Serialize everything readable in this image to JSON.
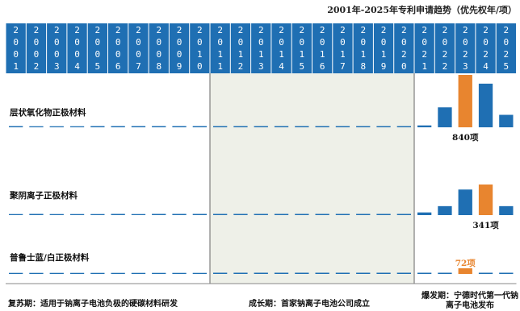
{
  "chart_data": {
    "type": "bar",
    "title": "2001年-2025年专利申请趋势（优先权年/项）",
    "years": [
      "2001",
      "2002",
      "2003",
      "2004",
      "2005",
      "2006",
      "2007",
      "2008",
      "2009",
      "2010",
      "2011",
      "2012",
      "2013",
      "2014",
      "2015",
      "2016",
      "2017",
      "2018",
      "2019",
      "2020",
      "2021",
      "2022",
      "2023",
      "2024",
      "2025"
    ],
    "series": [
      {
        "name": "层状氧化物正极材料",
        "color": "#1f6fb3",
        "values": [
          1,
          0,
          0,
          0,
          1,
          1,
          1,
          1,
          1,
          1,
          2,
          2,
          3,
          4,
          5,
          5,
          8,
          10,
          12,
          15,
          30,
          320,
          840,
          700,
          200
        ],
        "highlight_index": 22,
        "callout": "840项"
      },
      {
        "name": "聚阴离子正极材料",
        "color": "#1f6fb3",
        "values": [
          0,
          1,
          0,
          0,
          0,
          1,
          0,
          1,
          1,
          1,
          2,
          2,
          3,
          4,
          7,
          9,
          11,
          12,
          11,
          8,
          30,
          100,
          285,
          341,
          100
        ],
        "highlight_index": 23,
        "callout": "341项"
      },
      {
        "name": "普鲁士蓝/白正极材料",
        "color": "#1f6fb3",
        "values": [
          0,
          0,
          0,
          0,
          0,
          0,
          0,
          0,
          0,
          0,
          1,
          1,
          1,
          1,
          2,
          2,
          2,
          3,
          3,
          3,
          5,
          12,
          72,
          15,
          3
        ],
        "highlight_index": 22,
        "callout": "72项"
      }
    ],
    "highlight_color": "#e8852f",
    "phases": [
      {
        "name": "复苏期",
        "text": "复苏期：适用于钠离子电池负极的硬碳材料研发"
      },
      {
        "name": "成长期",
        "text": "成长期：首家钠离子电池公司成立"
      },
      {
        "name": "爆发期",
        "text": "爆发期：宁德时代第一代钠离子电池发布"
      }
    ]
  }
}
